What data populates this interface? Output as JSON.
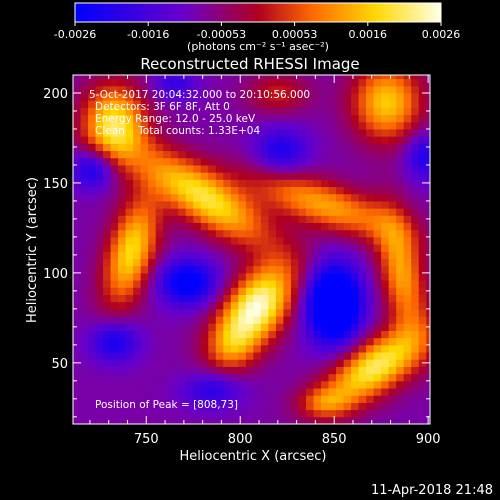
{
  "chart_data": {
    "type": "heatmap",
    "title": "Reconstructed RHESSI Image",
    "xlabel": "Heliocentric X (arcsec)",
    "ylabel": "Heliocentric Y (arcsec)",
    "xlim": [
      711,
      901
    ],
    "ylim": [
      16,
      210
    ],
    "x_ticks": [
      750,
      800,
      850,
      900
    ],
    "y_ticks": [
      50,
      100,
      150,
      200
    ],
    "colorbar": {
      "range": [
        -0.0026,
        0.0026
      ],
      "ticks": [
        "-0.0026",
        "-0.0016",
        "-0.00053",
        "0.00053",
        "0.0016",
        "0.0026"
      ],
      "unit_label": "(photons cm⁻² s⁻¹ asec⁻²)",
      "colors": [
        "#0000ff",
        "#6a00c8",
        "#b00020",
        "#ff6a00",
        "#ffd800",
        "#ffffe8"
      ]
    },
    "annotations": {
      "time_range": "5-Oct-2017 20:04:32.000 to 20:10:56.000",
      "detectors": "Detectors: 3F 6F 8F, Att 0",
      "energy": "Energy Range: 12.0 - 25.0 keV",
      "clean": "Clean    Total counts: 1.33E+04",
      "peak": "Position of Peak = [808,73]"
    },
    "components": [
      {
        "kind": "pos",
        "x": 808,
        "y": 80,
        "sx": 11,
        "sy": 20,
        "rot": -35,
        "a": 1.0
      },
      {
        "kind": "pos",
        "x": 795,
        "y": 58,
        "sx": 9,
        "sy": 9,
        "rot": 0,
        "a": 0.25
      },
      {
        "kind": "pos",
        "x": 781,
        "y": 142,
        "sx": 10,
        "sy": 28,
        "rot": 55,
        "a": 0.8
      },
      {
        "kind": "pos",
        "x": 742,
        "y": 112,
        "sx": 9,
        "sy": 22,
        "rot": -15,
        "a": 0.75
      },
      {
        "kind": "pos",
        "x": 733,
        "y": 182,
        "sx": 12,
        "sy": 16,
        "rot": 0,
        "a": 0.8
      },
      {
        "kind": "pos",
        "x": 845,
        "y": 138,
        "sx": 9,
        "sy": 30,
        "rot": 70,
        "a": 0.6
      },
      {
        "kind": "pos",
        "x": 872,
        "y": 48,
        "sx": 10,
        "sy": 22,
        "rot": -55,
        "a": 0.85
      },
      {
        "kind": "pos",
        "x": 886,
        "y": 100,
        "sx": 8,
        "sy": 24,
        "rot": 10,
        "a": 0.6
      },
      {
        "kind": "pos",
        "x": 878,
        "y": 195,
        "sx": 13,
        "sy": 15,
        "rot": 0,
        "a": 0.7
      },
      {
        "kind": "pos",
        "x": 820,
        "y": 200,
        "sx": 12,
        "sy": 8,
        "rot": 0,
        "a": 0.3
      },
      {
        "kind": "pos",
        "x": 845,
        "y": 28,
        "sx": 10,
        "sy": 6,
        "rot": 0,
        "a": 0.35
      },
      {
        "kind": "neg",
        "x": 850,
        "y": 83,
        "sx": 10,
        "sy": 15,
        "rot": 0,
        "a": 1.0
      },
      {
        "kind": "neg",
        "x": 772,
        "y": 95,
        "sx": 11,
        "sy": 9,
        "rot": 0,
        "a": 0.6
      },
      {
        "kind": "neg",
        "x": 722,
        "y": 158,
        "sx": 8,
        "sy": 8,
        "rot": 0,
        "a": 0.5
      },
      {
        "kind": "neg",
        "x": 733,
        "y": 62,
        "sx": 9,
        "sy": 8,
        "rot": 0,
        "a": 0.45
      },
      {
        "kind": "neg",
        "x": 822,
        "y": 168,
        "sx": 10,
        "sy": 9,
        "rot": 0,
        "a": 0.4
      },
      {
        "kind": "neg",
        "x": 898,
        "y": 165,
        "sx": 7,
        "sy": 9,
        "rot": 0,
        "a": 0.4
      },
      {
        "kind": "neg",
        "x": 785,
        "y": 35,
        "sx": 11,
        "sy": 7,
        "rot": 0,
        "a": 0.35
      },
      {
        "kind": "neg",
        "x": 765,
        "y": 205,
        "sx": 8,
        "sy": 6,
        "rot": 0,
        "a": 0.3
      }
    ]
  },
  "timestamp": "11-Apr-2018 21:48"
}
